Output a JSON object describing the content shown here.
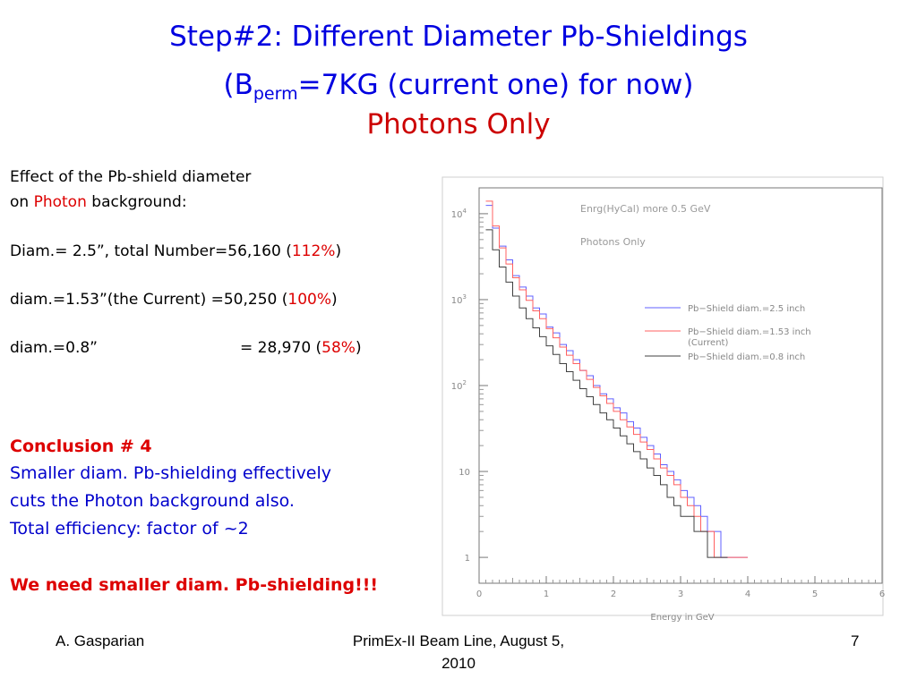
{
  "slide": {
    "title_line1": "Step#2: Different Diameter Pb-Shieldings",
    "title_line2_prefix": "B",
    "title_line2_sub": "perm",
    "title_line2_suffix": "=7KG (current one) for now",
    "title_line3": "Photons Only",
    "effect_line1": "Effect of the Pb-shield diameter",
    "effect_line2_prefix": "on ",
    "effect_line2_highlight": "Photon",
    "effect_line2_suffix": " background:",
    "rows": [
      {
        "label": "Diam.= 2.5”, total Number=56,160 (",
        "pct": "112%",
        "close": ")"
      },
      {
        "label": "diam.=1.53”(the Current) =50,250 (",
        "pct": "100%",
        "close": ")"
      },
      {
        "label": "diam.=0.8”",
        "eq": "=  28,970 (",
        "pct": "58%",
        "close": ")"
      }
    ],
    "conclusion_heading": "Conclusion # 4",
    "conclusion_line1": "Smaller diam. Pb-shielding effectively",
    "conclusion_line2": "cuts the Photon background also.",
    "conclusion_line3": "Total efficiency: factor of ~2",
    "need_line": "We need smaller diam. Pb-shielding!!!",
    "footer_author": "A. Gasparian",
    "footer_center_line1": "PrimEx-II Beam Line, August 5,",
    "footer_center_line2": "2010",
    "footer_page": "7",
    "colors": {
      "title": "#0000e0",
      "highlight": "#dd0000",
      "conclusion_text": "#0000cc"
    }
  },
  "chart_data": {
    "type": "line",
    "log_y": true,
    "xlabel": "Energy in GeV",
    "ylabel": "",
    "xlim": [
      0,
      6
    ],
    "ylim": [
      0.5,
      20000
    ],
    "x_ticks": [
      "0",
      "1",
      "2",
      "3",
      "4",
      "5",
      "6"
    ],
    "y_ticks": [
      {
        "value": 1,
        "label": "1"
      },
      {
        "value": 10,
        "label": "10"
      },
      {
        "value": 100,
        "label": "10",
        "exp": "2"
      },
      {
        "value": 1000,
        "label": "10",
        "exp": "3"
      },
      {
        "value": 10000,
        "label": "10",
        "exp": "4"
      }
    ],
    "annotation_line1": "Enrg(HyCal) more 0.5 GeV",
    "annotation_line2": "Photons Only",
    "bin_width": 0.1,
    "bin_start": 0.1,
    "series": [
      {
        "name": "Pb−Shield diam.=2.5 inch",
        "color": "#6060ff",
        "values": [
          12500,
          6800,
          4200,
          2900,
          1900,
          1400,
          1100,
          800,
          680,
          480,
          410,
          300,
          255,
          200,
          150,
          130,
          100,
          80,
          70,
          55,
          48,
          38,
          32,
          25,
          20,
          16,
          12,
          10,
          8,
          6,
          5,
          4,
          3,
          2,
          2,
          1,
          1,
          1,
          1
        ]
      },
      {
        "name": "Pb−Shield diam.=1.53 inch",
        "name_line2": "(Current)",
        "color": "#ff6060",
        "values": [
          14000,
          7200,
          4000,
          2600,
          1800,
          1300,
          980,
          740,
          600,
          460,
          360,
          280,
          225,
          180,
          150,
          118,
          95,
          76,
          62,
          50,
          40,
          33,
          27,
          22,
          18,
          14,
          11,
          9,
          7,
          5,
          4,
          3,
          2,
          2,
          1,
          1,
          1,
          1,
          1
        ]
      },
      {
        "name": "Pb−Shield diam.=0.8 inch",
        "color": "#404040",
        "values": [
          6500,
          3800,
          2400,
          1600,
          1100,
          800,
          600,
          470,
          370,
          290,
          230,
          180,
          145,
          115,
          92,
          74,
          60,
          48,
          40,
          32,
          26,
          21,
          17,
          14,
          11,
          9,
          7,
          5,
          4,
          3,
          3,
          2,
          2,
          1,
          1,
          1
        ]
      }
    ]
  }
}
